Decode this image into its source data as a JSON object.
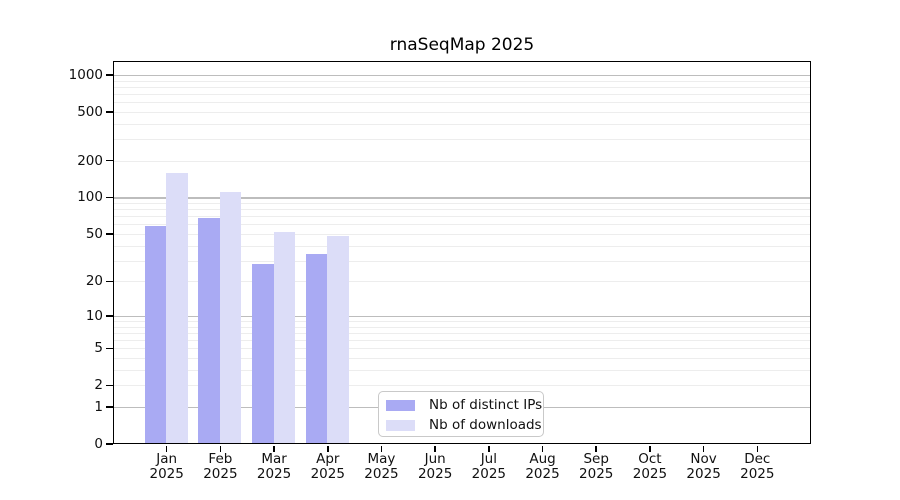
{
  "chart_data": {
    "type": "bar",
    "title": "rnaSeqMap 2025",
    "categories": [
      "Jan 2025",
      "Feb 2025",
      "Mar 2025",
      "Apr 2025",
      "May 2025",
      "Jun 2025",
      "Jul 2025",
      "Aug 2025",
      "Sep 2025",
      "Oct 2025",
      "Nov 2025",
      "Dec 2025"
    ],
    "series": [
      {
        "name": "Nb of distinct IPs",
        "color": "#a9aaf3",
        "values": [
          58,
          68,
          28,
          34,
          null,
          null,
          null,
          null,
          null,
          null,
          null,
          null
        ]
      },
      {
        "name": "Nb of downloads",
        "color": "#dcddf8",
        "values": [
          160,
          110,
          52,
          48,
          null,
          null,
          null,
          null,
          null,
          null,
          null,
          null
        ]
      }
    ],
    "xlabel": "",
    "ylabel": "",
    "yticks": [
      0,
      1,
      2,
      5,
      10,
      20,
      50,
      100,
      200,
      500,
      1000
    ],
    "yscale": "log10(1+x)",
    "ylim": [
      0,
      1385
    ],
    "grid": "horizontal; major lines at 1,10,100,1000; minor lines at 2-9 multiples",
    "legend_position": "inside, lower area left of center"
  }
}
